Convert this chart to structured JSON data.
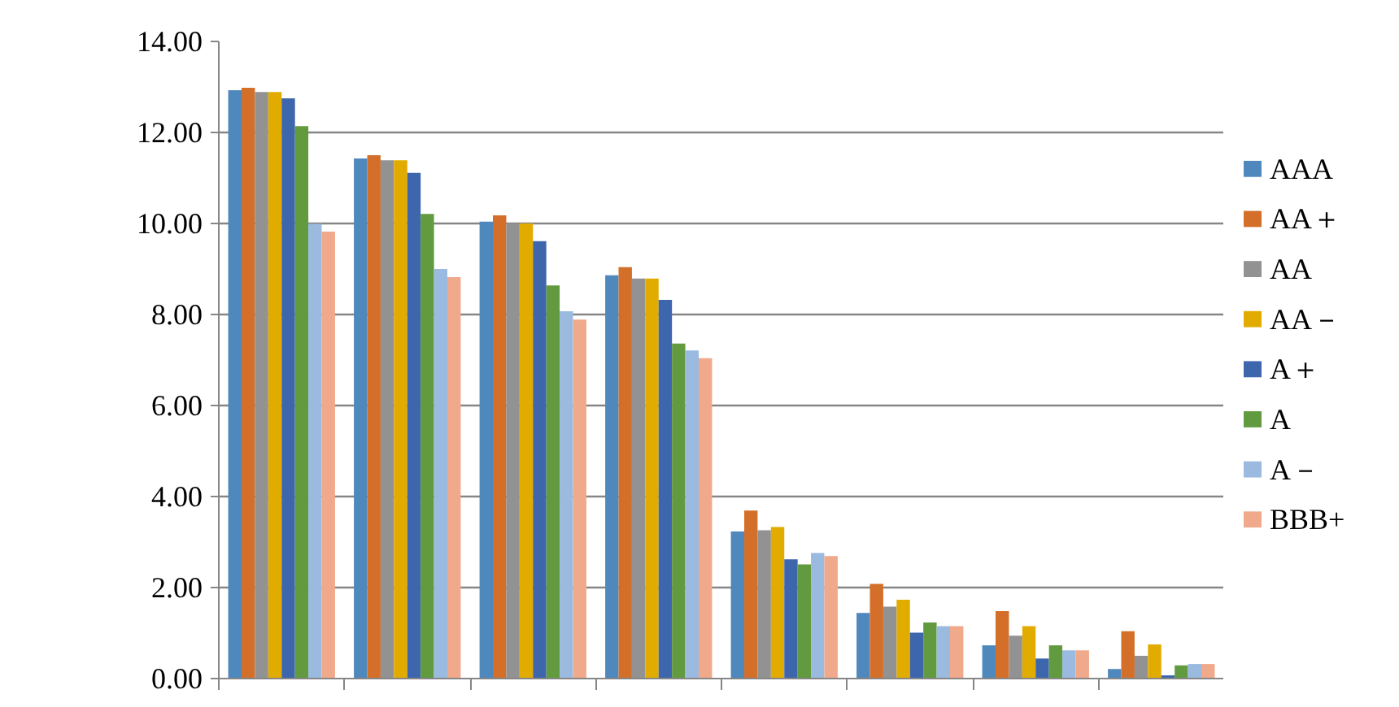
{
  "chart_data": {
    "type": "bar",
    "categories": [
      null,
      null,
      null,
      null,
      null,
      null,
      null,
      null
    ],
    "series": [
      {
        "name": "AAA",
        "color": "#4f88bd",
        "values": [
          12.93,
          11.43,
          10.04,
          8.86,
          3.23,
          1.44,
          0.73,
          0.21
        ]
      },
      {
        "name": "AA＋",
        "color": "#d46f2a",
        "values": [
          12.98,
          11.5,
          10.18,
          9.04,
          3.69,
          2.08,
          1.48,
          1.04
        ]
      },
      {
        "name": "AA",
        "color": "#929292",
        "values": [
          12.89,
          11.39,
          10.0,
          8.79,
          3.26,
          1.58,
          0.94,
          0.5
        ]
      },
      {
        "name": "AA－",
        "color": "#e2ab00",
        "values": [
          12.89,
          11.39,
          10.0,
          8.79,
          3.33,
          1.73,
          1.15,
          0.75
        ]
      },
      {
        "name": "A＋",
        "color": "#3d66ad",
        "values": [
          12.75,
          11.11,
          9.61,
          8.32,
          2.62,
          1.01,
          0.44,
          0.07
        ]
      },
      {
        "name": "A",
        "color": "#629a40",
        "values": [
          12.14,
          10.21,
          8.64,
          7.36,
          2.51,
          1.23,
          0.73,
          0.29
        ]
      },
      {
        "name": "A－",
        "color": "#9bbae0",
        "values": [
          9.99,
          9.0,
          8.07,
          7.21,
          2.76,
          1.15,
          0.62,
          0.32
        ]
      },
      {
        "name": "BBB+",
        "color": "#f1a98b",
        "values": [
          9.82,
          8.82,
          7.89,
          7.04,
          2.69,
          1.15,
          0.62,
          0.32
        ]
      }
    ],
    "ylim": [
      0,
      14
    ],
    "yticks": [
      {
        "value": 0,
        "label": "0.00"
      },
      {
        "value": 2,
        "label": "2.00"
      },
      {
        "value": 4,
        "label": "4.00"
      },
      {
        "value": 6,
        "label": "6.00"
      },
      {
        "value": 8,
        "label": "8.00"
      },
      {
        "value": 10,
        "label": "10.00"
      },
      {
        "value": 12,
        "label": "12.00"
      },
      {
        "value": 14,
        "label": "14.00"
      }
    ],
    "grid": "y",
    "legend": "right"
  }
}
